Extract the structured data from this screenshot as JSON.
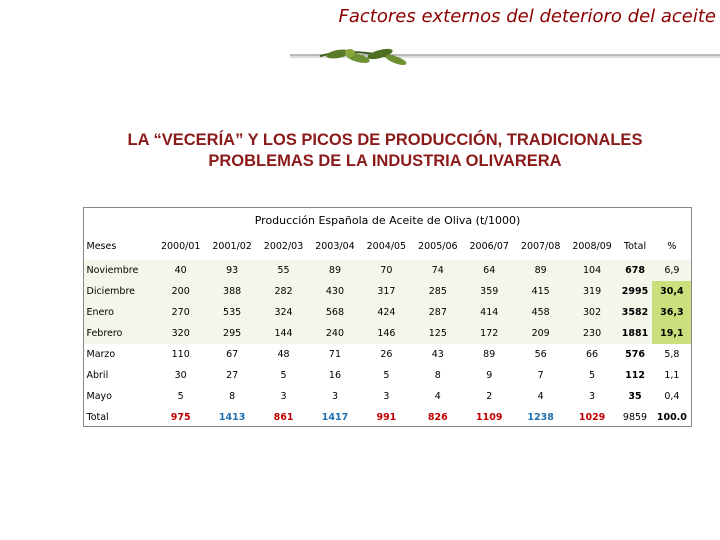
{
  "header": {
    "title": "Factores externos del deterioro del aceite"
  },
  "heading": {
    "line1": "LA “VECERÍA” Y LOS PICOS DE PRODUCCIÓN, TRADICIONALES",
    "line2": "PROBLEMAS DE LA INDUSTRIA OLIVARERA"
  },
  "table": {
    "title": "Producción Española de Aceite de Oliva (t/1000)",
    "columns": [
      "Meses",
      "2000/01",
      "2001/02",
      "2002/03",
      "2003/04",
      "2004/05",
      "2005/06",
      "2006/07",
      "2007/08",
      "2008/09",
      "Total",
      "%"
    ],
    "rows": [
      [
        "Noviembre",
        "40",
        "93",
        "55",
        "89",
        "70",
        "74",
        "64",
        "89",
        "104",
        "678",
        "6,9"
      ],
      [
        "Diciembre",
        "200",
        "388",
        "282",
        "430",
        "317",
        "285",
        "359",
        "415",
        "319",
        "2995",
        "30,4"
      ],
      [
        "Enero",
        "270",
        "535",
        "324",
        "568",
        "424",
        "287",
        "414",
        "458",
        "302",
        "3582",
        "36,3"
      ],
      [
        "Febrero",
        "320",
        "295",
        "144",
        "240",
        "146",
        "125",
        "172",
        "209",
        "230",
        "1881",
        "19,1"
      ],
      [
        "Marzo",
        "110",
        "67",
        "48",
        "71",
        "26",
        "43",
        "89",
        "56",
        "66",
        "576",
        "5,8"
      ],
      [
        "Abril",
        "30",
        "27",
        "5",
        "16",
        "5",
        "8",
        "9",
        "7",
        "5",
        "112",
        "1,1"
      ],
      [
        "Mayo",
        "5",
        "8",
        "3",
        "3",
        "3",
        "4",
        "2",
        "4",
        "3",
        "35",
        "0,4"
      ],
      [
        "Total",
        "975",
        "1413",
        "861",
        "1417",
        "991",
        "826",
        "1109",
        "1238",
        "1029",
        "9859",
        "100.0"
      ]
    ]
  }
}
